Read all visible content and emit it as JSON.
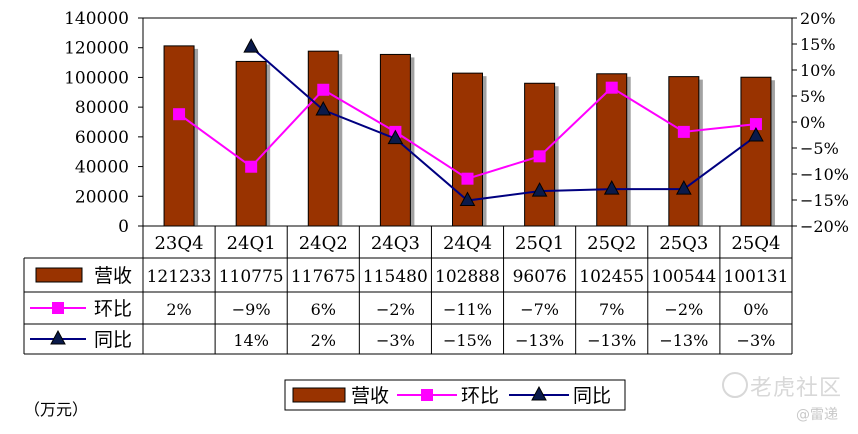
{
  "unit_label": "（万元）",
  "watermark": {
    "text": "老虎社区",
    "sub": "@雷递"
  },
  "chart_data": {
    "type": "bar",
    "categories": [
      "23Q4",
      "24Q1",
      "24Q2",
      "24Q3",
      "24Q4",
      "25Q1",
      "25Q2",
      "25Q3",
      "25Q4"
    ],
    "left_axis": {
      "ticks": [
        "0",
        "20000",
        "40000",
        "60000",
        "80000",
        "100000",
        "120000",
        "140000"
      ],
      "range": [
        0,
        140000
      ]
    },
    "right_axis": {
      "ticks": [
        "-20%",
        "-15%",
        "-10%",
        "-5%",
        "0%",
        "5%",
        "10%",
        "15%",
        "20%"
      ],
      "range": [
        -20,
        20
      ]
    },
    "series": [
      {
        "name": "营收",
        "kind": "bar",
        "axis": "left",
        "color": "#993300",
        "values": [
          121233,
          110775,
          117675,
          115480,
          102888,
          96076,
          102455,
          100544,
          100131
        ],
        "labels": [
          "121233",
          "110775",
          "117675",
          "115480",
          "102888",
          "96076",
          "102455",
          "100544",
          "100131"
        ]
      },
      {
        "name": "环比",
        "kind": "line",
        "axis": "right",
        "color": "#ff00ff",
        "marker": "square",
        "values": [
          1.5,
          -8.6,
          6.2,
          -1.9,
          -10.9,
          -6.6,
          6.6,
          -1.9,
          -0.4
        ],
        "labels": [
          "2%",
          "-9%",
          "6%",
          "-2%",
          "-11%",
          "-7%",
          "7%",
          "-2%",
          "0%"
        ]
      },
      {
        "name": "同比",
        "kind": "line",
        "axis": "right",
        "color": "#000080",
        "marker": "triangle",
        "values": [
          null,
          14.4,
          2.3,
          -3.2,
          -15.1,
          -13.3,
          -12.9,
          -12.9,
          -2.7
        ],
        "labels": [
          "",
          "14%",
          "2%",
          "-3%",
          "-15%",
          "-13%",
          "-13%",
          "-13%",
          "-3%"
        ]
      }
    ],
    "legend": {
      "position": "bottom",
      "entries": [
        "营收",
        "环比",
        "同比"
      ]
    },
    "grid": false
  }
}
